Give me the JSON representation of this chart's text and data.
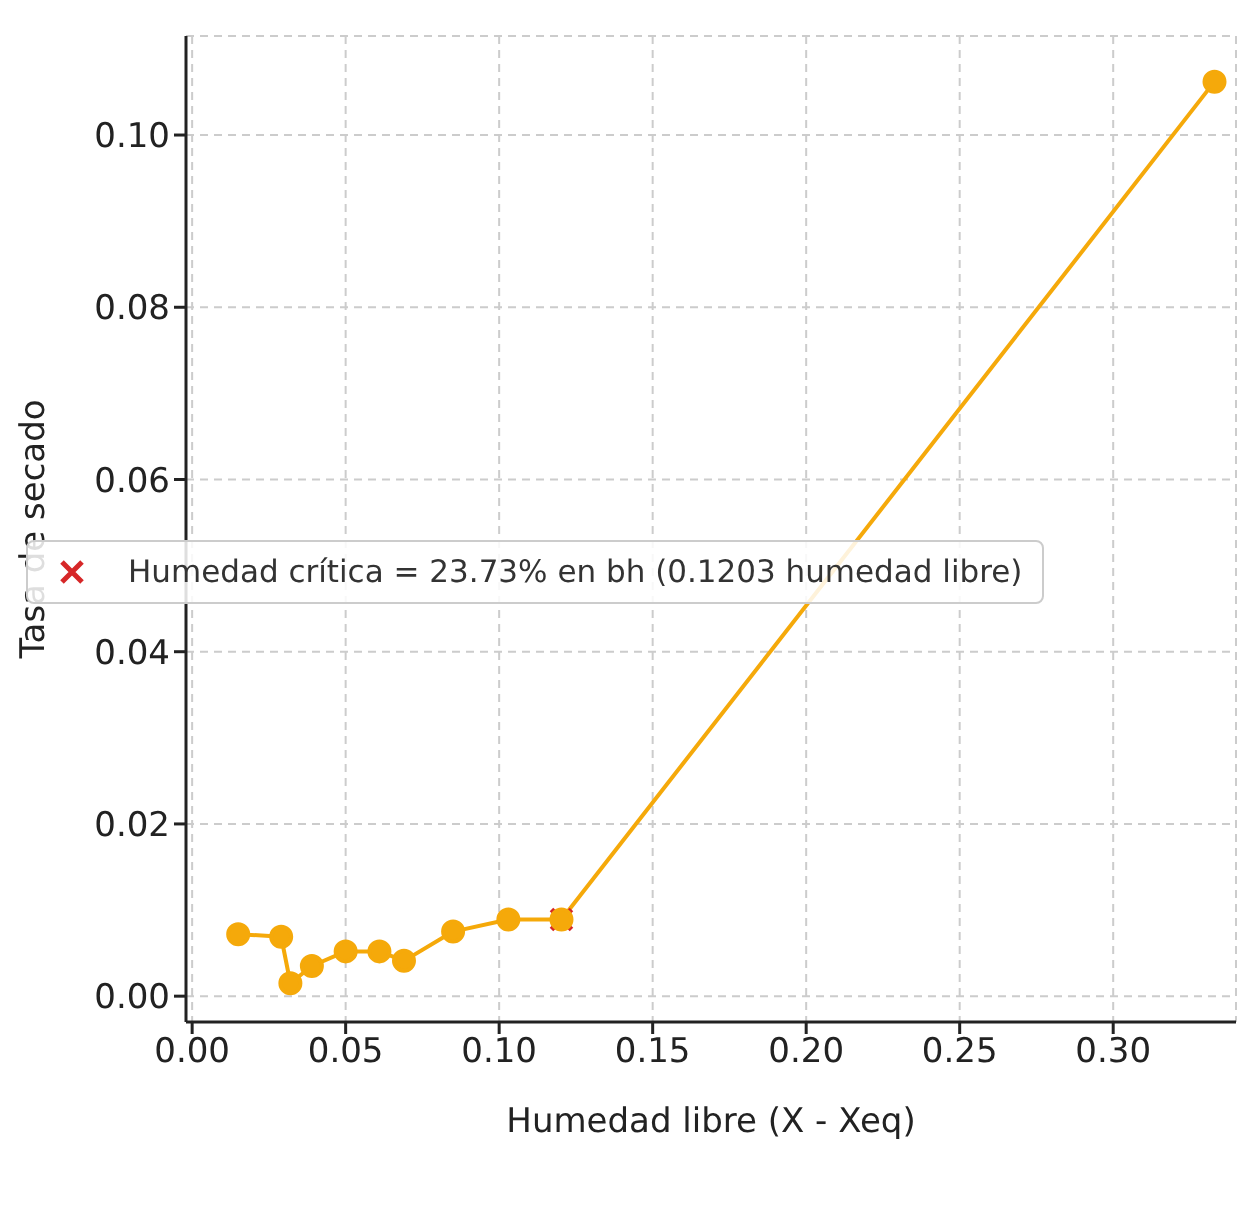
{
  "chart_data": {
    "type": "line",
    "xlabel": "Humedad libre (X - Xeq)",
    "ylabel": "Tasa de secado",
    "series": [
      {
        "color": "#f5a90a",
        "marker": "circle",
        "x": [
          0.015,
          0.029,
          0.032,
          0.039,
          0.05,
          0.061,
          0.069,
          0.085,
          0.103,
          0.1203,
          0.333
        ],
        "values": [
          0.0072,
          0.0069,
          0.0015,
          0.0035,
          0.0052,
          0.0052,
          0.0041,
          0.0075,
          0.0089,
          0.0089,
          0.1062
        ]
      },
      {
        "type": "scatter",
        "name": "Humedad crítica = 23.73% en bh (0.1203 humedad libre)",
        "color": "#d62728",
        "marker": "cross",
        "x": [
          0.1203
        ],
        "values": [
          0.0089
        ]
      }
    ],
    "xlim": [
      -0.002,
      0.34
    ],
    "xticks": [
      {
        "value": 0,
        "label": "0.00"
      },
      0.05,
      {
        "value": 0.1,
        "label": "0.10"
      },
      0.15,
      {
        "value": 0.2,
        "label": "0.20"
      },
      0.25,
      {
        "value": 0.3,
        "label": "0.30"
      }
    ],
    "ylim": [
      -0.003,
      0.1115
    ],
    "yticks": [
      {
        "value": 0,
        "label": "0.00"
      },
      0.02,
      0.04,
      0.06,
      0.08,
      {
        "value": 0.1,
        "label": "0.10"
      }
    ],
    "grid": true,
    "legend": "left"
  }
}
